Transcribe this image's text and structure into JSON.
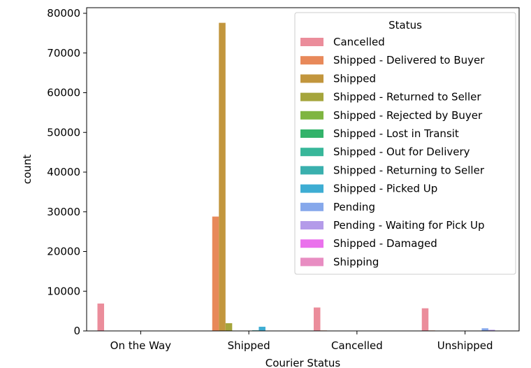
{
  "chart_data": {
    "type": "bar",
    "xlabel": "Courier Status",
    "ylabel": "count",
    "categories": [
      "On the Way",
      "Shipped",
      "Cancelled",
      "Unshipped"
    ],
    "ylim": [
      0,
      80000
    ],
    "yticks": [
      0,
      10000,
      20000,
      30000,
      40000,
      50000,
      60000,
      70000,
      80000
    ],
    "grid": false,
    "legend": {
      "title": "Status",
      "placement": "top-right"
    },
    "series": [
      {
        "name": "Cancelled",
        "color": "#eb8d9b",
        "values": [
          6900,
          0,
          5900,
          5700
        ]
      },
      {
        "name": "Shipped - Delivered to Buyer",
        "color": "#e8895a",
        "values": [
          0,
          28800,
          120,
          120
        ]
      },
      {
        "name": "Shipped",
        "color": "#c2963d",
        "values": [
          0,
          77600,
          0,
          0
        ]
      },
      {
        "name": "Shipped - Returned to Seller",
        "color": "#a5a53c",
        "values": [
          0,
          1950,
          0,
          0
        ]
      },
      {
        "name": "Shipped - Rejected by Buyer",
        "color": "#7fb541",
        "values": [
          0,
          50,
          0,
          0
        ]
      },
      {
        "name": "Shipped - Lost in Transit",
        "color": "#33b36a",
        "values": [
          0,
          10,
          0,
          0
        ]
      },
      {
        "name": "Shipped - Out for Delivery",
        "color": "#38b79a",
        "values": [
          0,
          40,
          0,
          0
        ]
      },
      {
        "name": "Shipped - Returning to Seller",
        "color": "#3ab0ae",
        "values": [
          0,
          150,
          0,
          0
        ]
      },
      {
        "name": "Shipped - Picked Up",
        "color": "#3eadd3",
        "values": [
          0,
          1050,
          0,
          0
        ]
      },
      {
        "name": "Pending",
        "color": "#86a8eb",
        "values": [
          0,
          0,
          0,
          660
        ]
      },
      {
        "name": "Pending - Waiting for Pick Up",
        "color": "#b49be9",
        "values": [
          0,
          0,
          0,
          280
        ]
      },
      {
        "name": "Shipped - Damaged",
        "color": "#ea71ec",
        "values": [
          0,
          1,
          0,
          0
        ]
      },
      {
        "name": "Shipping",
        "color": "#e88dc2",
        "values": [
          0,
          0,
          0,
          8
        ]
      }
    ]
  }
}
